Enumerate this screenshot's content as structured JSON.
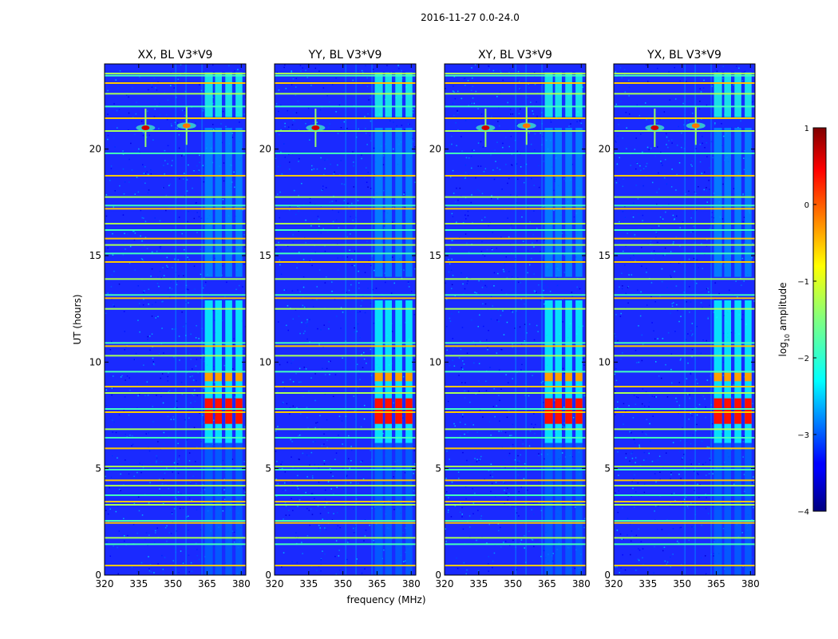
{
  "chart_data": {
    "type": "heatmap",
    "suptitle": "2016-11-27 0.0-24.0",
    "xlabel": "frequency (MHz)",
    "ylabel": "UT (hours)",
    "xlim": [
      320,
      382
    ],
    "ylim": [
      0,
      24
    ],
    "xticks": [
      320,
      335,
      350,
      365,
      380
    ],
    "yticks": [
      0,
      5,
      10,
      15,
      20
    ],
    "colorbar": {
      "label": "log",
      "label_sub": "10",
      "label_rest": " amplitude",
      "range": [
        -4,
        1
      ],
      "ticks": [
        1,
        0,
        -1,
        -2,
        -3,
        -4
      ],
      "tick_labels": [
        "1",
        "0",
        "−1",
        "−2",
        "−3",
        "−4"
      ],
      "colormap": "jet"
    },
    "panels": [
      {
        "title": "XX, BL V3*V9"
      },
      {
        "title": "YY, BL V3*V9"
      },
      {
        "title": "XY, BL V3*V9"
      },
      {
        "title": "YX, BL V3*V9"
      }
    ],
    "horizontal_rfi_hours": [
      0.45,
      1.45,
      1.75,
      2.45,
      2.55,
      3.3,
      3.45,
      3.75,
      4.2,
      4.45,
      4.95,
      5.1,
      5.95,
      6.45,
      6.85,
      7.65,
      7.8,
      8.55,
      8.85,
      9.55,
      10.3,
      10.75,
      10.9,
      12.5,
      13.0,
      13.15,
      13.9,
      14.7,
      15.1,
      15.5,
      15.8,
      16.2,
      16.5,
      17.2,
      17.35,
      17.75,
      18.75,
      19.8,
      20.85,
      21.45,
      22.0,
      22.6,
      23.1,
      23.45,
      23.55
    ],
    "frequency_blocks_mhz": [
      [
        364,
        367.5
      ],
      [
        368.5,
        371.5
      ],
      [
        373,
        376
      ],
      [
        377.5,
        380.5
      ]
    ],
    "bright_sources": [
      {
        "freq_mhz": 338,
        "hour": 21.0,
        "log_amp": 0.6
      },
      {
        "freq_mhz": 356,
        "hour": 21.1,
        "log_amp": -0.2
      }
    ]
  },
  "colors": {
    "background": "#ffffff",
    "noise_base": "#1a2aff"
  }
}
